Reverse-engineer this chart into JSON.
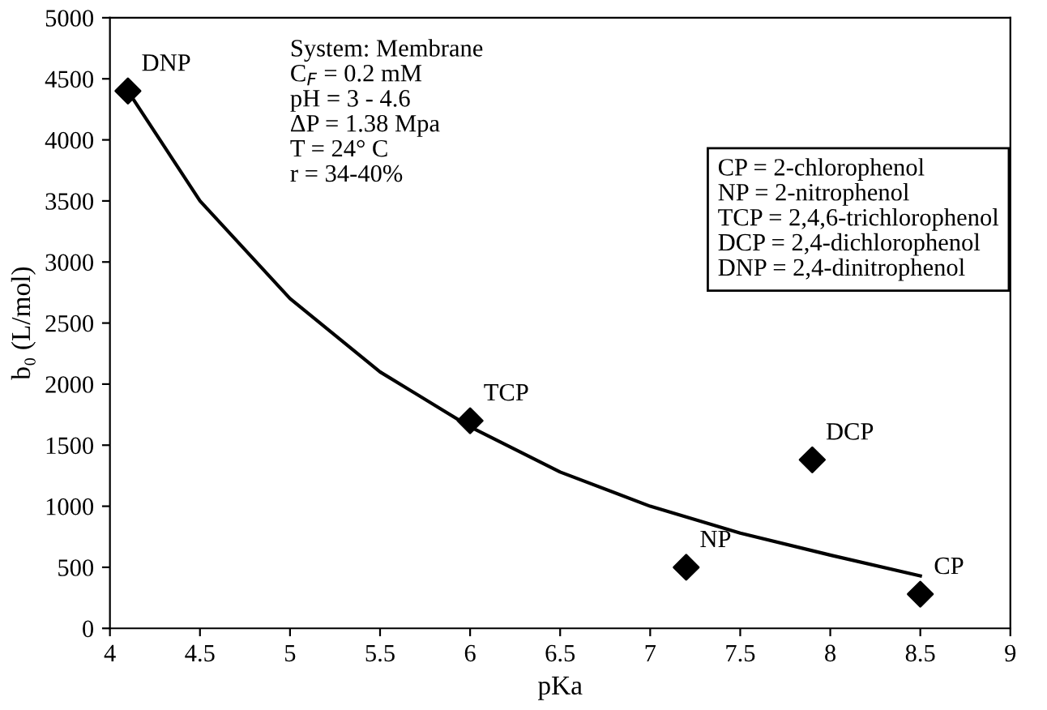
{
  "chart_data": {
    "type": "scatter",
    "xlabel": "pKa",
    "ylabel": "b₀ (L/mol)",
    "xlim": [
      4,
      9
    ],
    "xticks": [
      4,
      4.5,
      5,
      5.5,
      6,
      6.5,
      7,
      7.5,
      8,
      8.5,
      9
    ],
    "ylim": [
      0,
      5000
    ],
    "yticks": [
      0,
      500,
      1000,
      1500,
      2000,
      2500,
      3000,
      3500,
      4000,
      4500,
      5000
    ],
    "grid": false,
    "legend": false,
    "series": [
      {
        "color": "#000000",
        "marker": "diamond",
        "x": [
          4.1,
          6.0,
          7.2,
          7.9,
          8.5
        ],
        "values": [
          4400,
          1700,
          500,
          1380,
          280
        ]
      },
      {
        "type": "line",
        "color": "#000000",
        "marker": "none",
        "line_style": "solid",
        "x": [
          4.1,
          4.5,
          5,
          5.5,
          6,
          6.5,
          7,
          7.5,
          8,
          8.5
        ],
        "values": [
          4400,
          3500,
          2700,
          2100,
          1650,
          1280,
          1000,
          780,
          600,
          430
        ]
      }
    ],
    "annotations": [
      {
        "text": "DNP",
        "x": 4.1,
        "y": 4400
      },
      {
        "text": "TCP",
        "x": 6.0,
        "y": 1700
      },
      {
        "text": "NP",
        "x": 7.2,
        "y": 500
      },
      {
        "text": "DCP",
        "x": 7.9,
        "y": 1380
      },
      {
        "text": "CP",
        "x": 8.5,
        "y": 280
      },
      "System: Membrane\nC$_{F}$ = 0.2 mM\npH = 3 - 4.6\nΔP = 1.38 Mpa\nT = 24° C\nr = 34-40%",
      "CP = 2-chlorophenol\nNP = 2-nitrophenol\nTCP = 2,4,6-trichlorophenol\nDCP = 2,4-dichlorophenol\nDNP = 2,4-dinitrophenol"
    ]
  }
}
